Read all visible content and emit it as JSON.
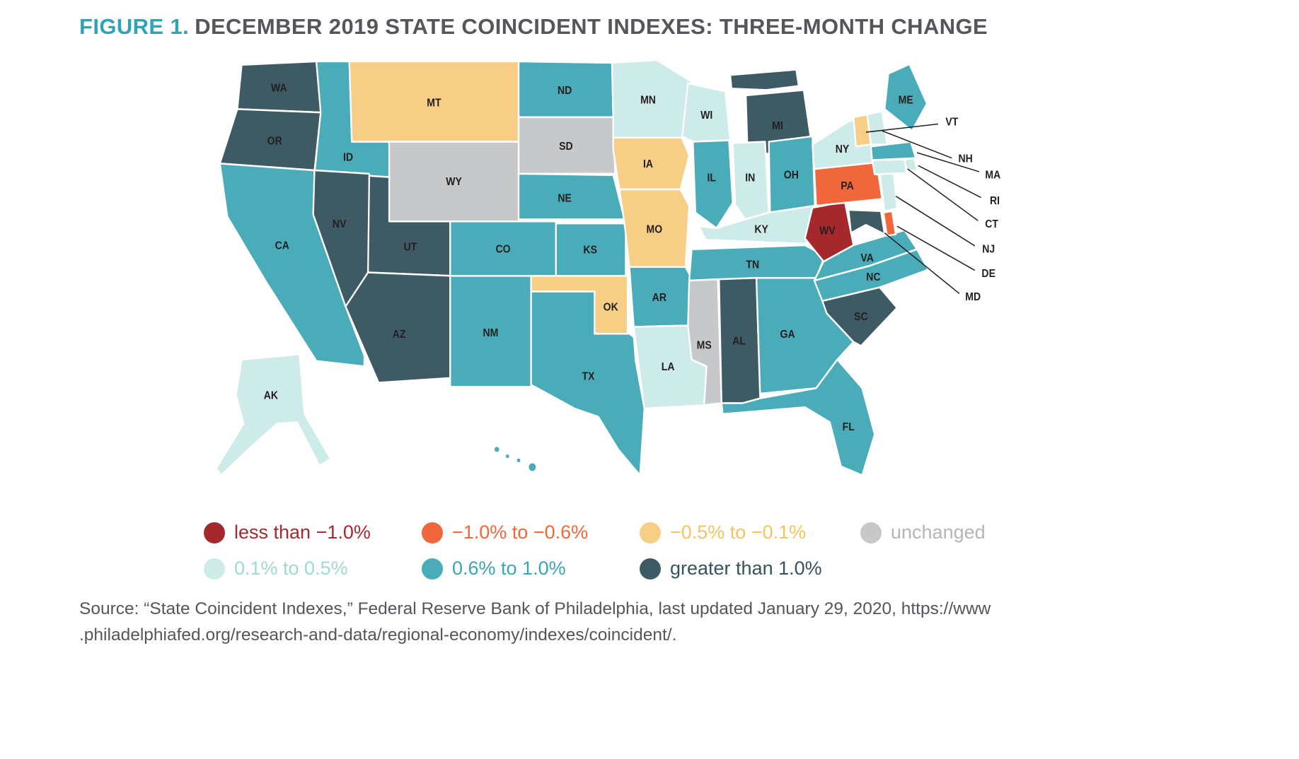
{
  "figure": {
    "label": "FIGURE 1.",
    "title": "DECEMBER 2019 STATE COINCIDENT INDEXES: THREE-MONTH CHANGE"
  },
  "legend": {
    "buckets": [
      {
        "id": "lt_neg1",
        "label": "less than −1.0%",
        "color": "#A5282D",
        "text_color": "#A5282D"
      },
      {
        "id": "neg1_neg06",
        "label": "−1.0% to −0.6%",
        "color": "#F1673C",
        "text_color": "#F1673C"
      },
      {
        "id": "neg05_neg01",
        "label": "−0.5% to −0.1%",
        "color": "#F7CE85",
        "text_color": "#F3C464"
      },
      {
        "id": "unchanged",
        "label": "unchanged",
        "color": "#C7C8CA",
        "text_color": "#B3B5B7"
      },
      {
        "id": "pos01_05",
        "label": "0.1% to 0.5%",
        "color": "#CDEBE8",
        "text_color": "#9EDAD3"
      },
      {
        "id": "pos06_10",
        "label": "0.6% to 1.0%",
        "color": "#4BACB9",
        "text_color": "#3AA5B4"
      },
      {
        "id": "gt1",
        "label": "greater than 1.0%",
        "color": "#3E5A64",
        "text_color": "#35535D"
      }
    ],
    "rows": [
      [
        "lt_neg1",
        "neg1_neg06",
        "neg05_neg01",
        "unchanged"
      ],
      [
        "pos01_05",
        "pos06_10",
        "gt1"
      ]
    ]
  },
  "chart_data": {
    "type": "heatmap",
    "subtype": "us-state-choropleth",
    "title": "December 2019 State Coincident Indexes: Three-Month Change",
    "legend_position": "bottom",
    "buckets": [
      "less than −1.0%",
      "−1.0% to −0.6%",
      "−0.5% to −0.1%",
      "unchanged",
      "0.1% to 0.5%",
      "0.6% to 1.0%",
      "greater than 1.0%"
    ],
    "state_buckets": {
      "WA": "gt1",
      "OR": "gt1",
      "CA": "pos06_10",
      "NV": "gt1",
      "ID": "pos06_10",
      "MT": "neg05_neg01",
      "WY": "unchanged",
      "UT": "gt1",
      "CO": "pos06_10",
      "AZ": "gt1",
      "NM": "pos06_10",
      "ND": "pos06_10",
      "SD": "unchanged",
      "NE": "pos06_10",
      "KS": "pos06_10",
      "OK": "neg05_neg01",
      "TX": "pos06_10",
      "MN": "pos01_05",
      "IA": "neg05_neg01",
      "MO": "neg05_neg01",
      "AR": "pos06_10",
      "LA": "pos01_05",
      "WI": "pos01_05",
      "IL": "pos06_10",
      "IN": "pos01_05",
      "MI": "gt1",
      "OH": "pos06_10",
      "KY": "pos01_05",
      "TN": "pos06_10",
      "MS": "unchanged",
      "AL": "gt1",
      "GA": "pos06_10",
      "FL": "pos06_10",
      "SC": "gt1",
      "NC": "pos06_10",
      "VA": "pos06_10",
      "WV": "lt_neg1",
      "PA": "neg1_neg06",
      "NY": "pos01_05",
      "NJ": "pos01_05",
      "DE": "neg1_neg06",
      "MD": "gt1",
      "VT": "neg05_neg01",
      "NH": "pos01_05",
      "MA": "pos06_10",
      "RI": "pos01_05",
      "CT": "pos01_05",
      "ME": "pos06_10",
      "AK": "pos01_05",
      "HI": "pos06_10"
    }
  },
  "callout_labels": [
    "VT",
    "NH",
    "MA",
    "RI",
    "CT",
    "NJ",
    "DE",
    "MD"
  ],
  "source": {
    "line1": "Source: “State Coincident Indexes,” Federal Reserve Bank of Philadelphia, last updated January 29, 2020, https://www",
    "line2": ".philadelphiafed.org/research-and-data/regional-economy/indexes/coincident/."
  }
}
